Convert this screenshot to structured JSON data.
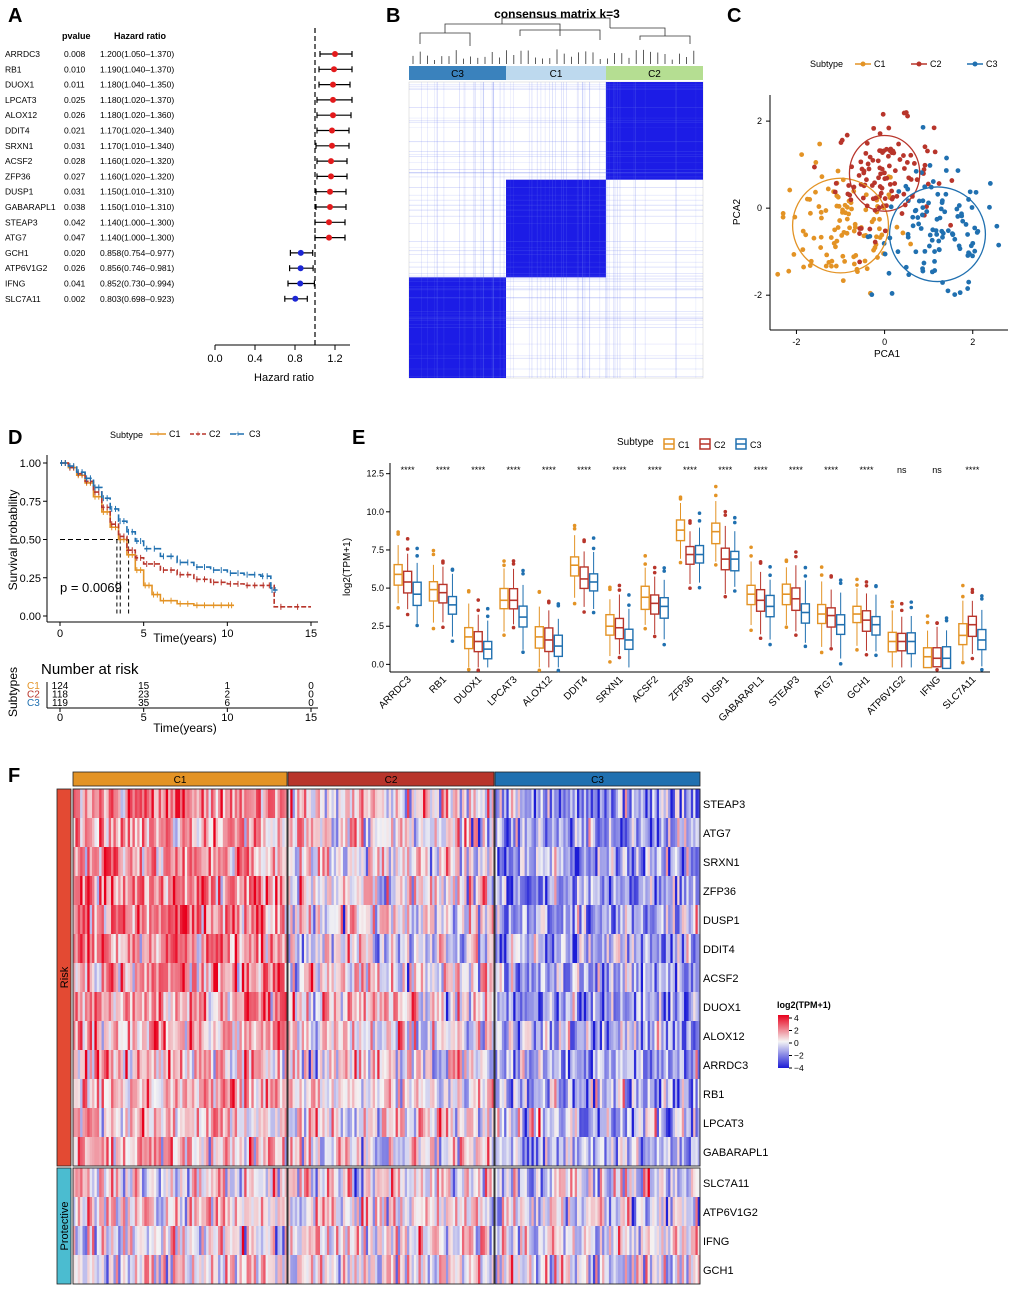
{
  "figure": {
    "panel_labels": [
      "A",
      "B",
      "C",
      "D",
      "E",
      "F"
    ]
  },
  "colors": {
    "C1": "#E39325",
    "C2": "#B8352B",
    "C3": "#2070B0",
    "risk_dot": "#E31A1C",
    "prot_dot": "#1C26D4",
    "risk_bar": "#E34A33",
    "prot_bar": "#4BBCD0"
  },
  "chart_data": [
    {
      "panel": "A",
      "type": "forest",
      "col_headers": {
        "pvalue": "pvalue",
        "hr": "Hazard ratio"
      },
      "xlabel": "Hazard ratio",
      "xlim": [
        0.0,
        1.35
      ],
      "xticks": [
        "0.0",
        "0.4",
        "0.8",
        "1.2"
      ],
      "ref_line": 1.0,
      "rows": [
        {
          "gene": "ARRDC3",
          "p": "0.008",
          "hr_text": "1.200(1.050–1.370)",
          "hr": 1.2,
          "lo": 1.05,
          "hi": 1.37
        },
        {
          "gene": "RB1",
          "p": "0.010",
          "hr_text": "1.190(1.040–1.370)",
          "hr": 1.19,
          "lo": 1.04,
          "hi": 1.37
        },
        {
          "gene": "DUOX1",
          "p": "0.011",
          "hr_text": "1.180(1.040–1.350)",
          "hr": 1.18,
          "lo": 1.04,
          "hi": 1.35
        },
        {
          "gene": "LPCAT3",
          "p": "0.025",
          "hr_text": "1.180(1.020–1.370)",
          "hr": 1.18,
          "lo": 1.02,
          "hi": 1.37
        },
        {
          "gene": "ALOX12",
          "p": "0.026",
          "hr_text": "1.180(1.020–1.360)",
          "hr": 1.18,
          "lo": 1.02,
          "hi": 1.36
        },
        {
          "gene": "DDIT4",
          "p": "0.021",
          "hr_text": "1.170(1.020–1.340)",
          "hr": 1.17,
          "lo": 1.02,
          "hi": 1.34
        },
        {
          "gene": "SRXN1",
          "p": "0.031",
          "hr_text": "1.170(1.010–1.340)",
          "hr": 1.17,
          "lo": 1.01,
          "hi": 1.34
        },
        {
          "gene": "ACSF2",
          "p": "0.028",
          "hr_text": "1.160(1.020–1.320)",
          "hr": 1.16,
          "lo": 1.02,
          "hi": 1.32
        },
        {
          "gene": "ZFP36",
          "p": "0.027",
          "hr_text": "1.160(1.020–1.320)",
          "hr": 1.16,
          "lo": 1.02,
          "hi": 1.32
        },
        {
          "gene": "DUSP1",
          "p": "0.031",
          "hr_text": "1.150(1.010–1.310)",
          "hr": 1.15,
          "lo": 1.01,
          "hi": 1.31
        },
        {
          "gene": "GABARAPL1",
          "p": "0.038",
          "hr_text": "1.150(1.010–1.310)",
          "hr": 1.15,
          "lo": 1.01,
          "hi": 1.31
        },
        {
          "gene": "STEAP3",
          "p": "0.042",
          "hr_text": "1.140(1.000–1.300)",
          "hr": 1.14,
          "lo": 1.0,
          "hi": 1.3
        },
        {
          "gene": "ATG7",
          "p": "0.047",
          "hr_text": "1.140(1.000–1.300)",
          "hr": 1.14,
          "lo": 1.0,
          "hi": 1.3
        },
        {
          "gene": "GCH1",
          "p": "0.020",
          "hr_text": "0.858(0.754–0.977)",
          "hr": 0.858,
          "lo": 0.754,
          "hi": 0.977
        },
        {
          "gene": "ATP6V1G2",
          "p": "0.026",
          "hr_text": "0.856(0.746–0.981)",
          "hr": 0.856,
          "lo": 0.746,
          "hi": 0.981
        },
        {
          "gene": "IFNG",
          "p": "0.041",
          "hr_text": "0.852(0.730–0.994)",
          "hr": 0.852,
          "lo": 0.73,
          "hi": 0.994
        },
        {
          "gene": "SLC7A11",
          "p": "0.002",
          "hr_text": "0.803(0.698–0.923)",
          "hr": 0.803,
          "lo": 0.698,
          "hi": 0.923
        }
      ]
    },
    {
      "panel": "B",
      "type": "heatmap",
      "title": "consensus matrix k=3",
      "clusters": [
        {
          "name": "C3",
          "share": 0.33
        },
        {
          "name": "C1",
          "share": 0.34
        },
        {
          "name": "C2",
          "share": 0.33
        }
      ]
    },
    {
      "panel": "C",
      "type": "scatter",
      "legend_title": "Subtype",
      "series_names": [
        "C1",
        "C2",
        "C3"
      ],
      "centers": [
        {
          "name": "C1",
          "x": -1.0,
          "y": -0.4
        },
        {
          "name": "C2",
          "x": 0.0,
          "y": 0.8
        },
        {
          "name": "C3",
          "x": 1.2,
          "y": -0.6
        }
      ],
      "xlabel": "PCA1",
      "ylabel": "PCA2",
      "xlim": [
        -2.6,
        2.8
      ],
      "ylim": [
        -2.8,
        2.6
      ],
      "xticks": [
        "-2",
        "0",
        "2"
      ],
      "yticks": [
        "2",
        "0",
        "-2"
      ]
    },
    {
      "panel": "D",
      "type": "line",
      "legend_title": "Subtype",
      "series_names": [
        "C1",
        "C2",
        "C3"
      ],
      "xlabel": "Time(years)",
      "ylabel": "Survival probability",
      "xlim": [
        0,
        15
      ],
      "ylim": [
        0,
        1
      ],
      "xticks": [
        "0",
        "5",
        "10",
        "15"
      ],
      "yticks": [
        "1.00",
        "0.75",
        "0.50",
        "0.25",
        "0.00"
      ],
      "pvalue": "p = 0.0069",
      "median_line": 0.5,
      "series": [
        {
          "name": "C1",
          "times": [
            0,
            0.5,
            1,
            1.5,
            2,
            2.5,
            3,
            3.5,
            4,
            4.5,
            5,
            5.5,
            6,
            7,
            8,
            9,
            10,
            10.4
          ],
          "surv": [
            1,
            0.97,
            0.92,
            0.87,
            0.78,
            0.68,
            0.58,
            0.5,
            0.4,
            0.3,
            0.2,
            0.14,
            0.1,
            0.08,
            0.07,
            0.07,
            0.07,
            0.07
          ]
        },
        {
          "name": "C2",
          "times": [
            0,
            0.5,
            1,
            1.5,
            2,
            2.5,
            3,
            3.5,
            4,
            4.5,
            5,
            6,
            7,
            8,
            9,
            10,
            11,
            12,
            12.8,
            15
          ],
          "surv": [
            1,
            0.97,
            0.93,
            0.88,
            0.81,
            0.71,
            0.6,
            0.52,
            0.43,
            0.38,
            0.34,
            0.3,
            0.27,
            0.24,
            0.22,
            0.21,
            0.2,
            0.2,
            0.06,
            0.06
          ]
        },
        {
          "name": "C3",
          "times": [
            0,
            0.5,
            1,
            1.5,
            2,
            2.5,
            3,
            3.5,
            4,
            4.5,
            5,
            6,
            7,
            8,
            9,
            10,
            11,
            12,
            12.6,
            13
          ],
          "surv": [
            1,
            0.98,
            0.94,
            0.9,
            0.84,
            0.77,
            0.7,
            0.62,
            0.55,
            0.49,
            0.44,
            0.39,
            0.35,
            0.32,
            0.3,
            0.28,
            0.27,
            0.26,
            0.17,
            0.17
          ]
        }
      ],
      "risk_table": {
        "title": "Number at risk",
        "ylabel": "Subtypes",
        "rows": [
          {
            "name": "C1",
            "counts": [
              "124",
              "15",
              "1",
              "0"
            ]
          },
          {
            "name": "C2",
            "counts": [
              "118",
              "23",
              "2",
              "0"
            ]
          },
          {
            "name": "C3",
            "counts": [
              "119",
              "35",
              "6",
              "0"
            ]
          }
        ]
      }
    },
    {
      "panel": "E",
      "type": "box",
      "legend_title": "Subtype",
      "series_names": [
        "C1",
        "C2",
        "C3"
      ],
      "ylabel": "log2(TPM+1)",
      "ylim": [
        -0.5,
        13.2
      ],
      "yticks": [
        "12.5",
        "10.0",
        "7.5",
        "5.0",
        "2.5",
        "0.0"
      ],
      "categories": [
        "ARRDC3",
        "RB1",
        "DUOX1",
        "LPCAT3",
        "ALOX12",
        "DDIT4",
        "SRXN1",
        "ACSF2",
        "ZFP36",
        "DUSP1",
        "GABARAPL1",
        "STEAP3",
        "ATG7",
        "GCH1",
        "ATP6V1G2",
        "IFNG",
        "SLC7A11"
      ],
      "significance": [
        "****",
        "****",
        "****",
        "****",
        "****",
        "****",
        "****",
        "****",
        "****",
        "****",
        "****",
        "****",
        "****",
        "****",
        "ns",
        "ns",
        "****"
      ],
      "medians": [
        [
          5.9,
          5.4,
          4.6
        ],
        [
          4.9,
          4.7,
          3.9
        ],
        [
          1.8,
          1.5,
          1.0
        ],
        [
          4.2,
          4.2,
          3.1
        ],
        [
          1.8,
          1.6,
          1.2
        ],
        [
          6.5,
          5.6,
          5.4
        ],
        [
          2.5,
          2.4,
          1.6
        ],
        [
          4.4,
          4.0,
          3.8
        ],
        [
          8.8,
          7.2,
          7.2
        ],
        [
          8.7,
          6.9,
          6.9
        ],
        [
          4.6,
          4.2,
          3.8
        ],
        [
          4.6,
          4.3,
          3.4
        ],
        [
          3.3,
          3.2,
          2.6
        ],
        [
          3.3,
          2.9,
          2.6
        ],
        [
          1.5,
          1.5,
          1.5
        ],
        [
          0.5,
          0.4,
          0.4
        ],
        [
          1.9,
          2.6,
          1.6
        ]
      ]
    },
    {
      "panel": "F",
      "type": "heatmap",
      "groups": [
        "C1",
        "C2",
        "C3"
      ],
      "row_groups": [
        {
          "name": "Risk",
          "genes": [
            "STEAP3",
            "ATG7",
            "SRXN1",
            "ZFP36",
            "DUSP1",
            "DDIT4",
            "ACSF2",
            "DUOX1",
            "ALOX12",
            "ARRDC3",
            "RB1",
            "LPCAT3",
            "GABARAPL1"
          ]
        },
        {
          "name": "Protective",
          "genes": [
            "SLC7A11",
            "ATP6V1G2",
            "IFNG",
            "GCH1"
          ]
        }
      ],
      "legend_title": "log2(TPM+1)",
      "legend_ticks": [
        "4",
        "2",
        "0",
        "−2",
        "−4"
      ]
    }
  ]
}
